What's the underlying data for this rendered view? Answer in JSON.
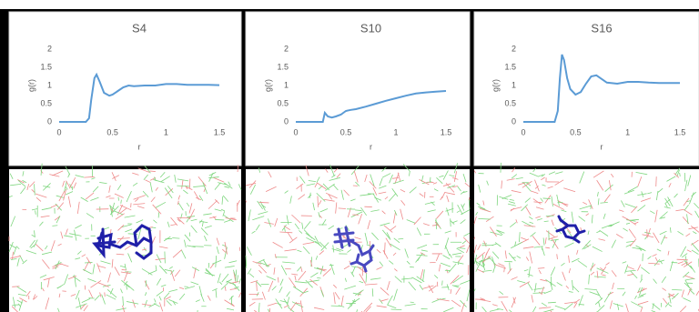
{
  "chart_data": [
    {
      "type": "line",
      "title": "S4",
      "xlabel": "r",
      "ylabel": "g(r)",
      "x": [
        0,
        0.25,
        0.28,
        0.3,
        0.33,
        0.35,
        0.38,
        0.42,
        0.47,
        0.5,
        0.55,
        0.6,
        0.65,
        0.7,
        0.8,
        0.9,
        1.0,
        1.1,
        1.2,
        1.3,
        1.4,
        1.5
      ],
      "series": [
        {
          "color": "#5b9bd5",
          "values": [
            0,
            0,
            0.1,
            0.6,
            1.2,
            1.3,
            1.1,
            0.8,
            0.72,
            0.75,
            0.85,
            0.95,
            1.0,
            0.98,
            1.0,
            1.0,
            1.04,
            1.04,
            1.02,
            1.02,
            1.02,
            1.01
          ]
        }
      ],
      "xlim": [
        0,
        1.5
      ],
      "xticks": [
        0,
        0.5,
        1,
        1.5
      ],
      "ylim": [
        0,
        2
      ],
      "yticks": [
        0,
        0.5,
        1,
        1.5,
        2
      ]
    },
    {
      "type": "line",
      "title": "S10",
      "xlabel": "r",
      "ylabel": "g(r)",
      "x": [
        0,
        0.27,
        0.29,
        0.32,
        0.36,
        0.4,
        0.45,
        0.5,
        0.55,
        0.6,
        0.7,
        0.8,
        0.9,
        1.0,
        1.1,
        1.2,
        1.3,
        1.4,
        1.5
      ],
      "series": [
        {
          "color": "#5b9bd5",
          "values": [
            0,
            0,
            0.25,
            0.15,
            0.12,
            0.15,
            0.2,
            0.3,
            0.33,
            0.35,
            0.42,
            0.5,
            0.58,
            0.65,
            0.72,
            0.78,
            0.81,
            0.83,
            0.85
          ]
        }
      ],
      "xlim": [
        0,
        1.5
      ],
      "xticks": [
        0,
        0.5,
        1,
        1.5
      ],
      "ylim": [
        0,
        2
      ],
      "yticks": [
        0,
        0.5,
        1,
        1.5,
        2
      ]
    },
    {
      "type": "line",
      "title": "S16",
      "xlabel": "r",
      "ylabel": "g(r)",
      "x": [
        0,
        0.3,
        0.33,
        0.35,
        0.37,
        0.39,
        0.42,
        0.45,
        0.5,
        0.55,
        0.6,
        0.65,
        0.7,
        0.75,
        0.8,
        0.9,
        1.0,
        1.1,
        1.2,
        1.3,
        1.4,
        1.5
      ],
      "series": [
        {
          "color": "#5b9bd5",
          "values": [
            0,
            0,
            0.3,
            1.2,
            1.85,
            1.7,
            1.2,
            0.9,
            0.75,
            0.82,
            1.05,
            1.25,
            1.28,
            1.18,
            1.08,
            1.05,
            1.1,
            1.1,
            1.08,
            1.07,
            1.07,
            1.07
          ]
        }
      ],
      "xlim": [
        0,
        1.5
      ],
      "xticks": [
        0,
        0.5,
        1,
        1.5
      ],
      "ylim": [
        0,
        2
      ],
      "yticks": [
        0,
        0.5,
        1,
        1.5,
        2
      ]
    }
  ]
}
